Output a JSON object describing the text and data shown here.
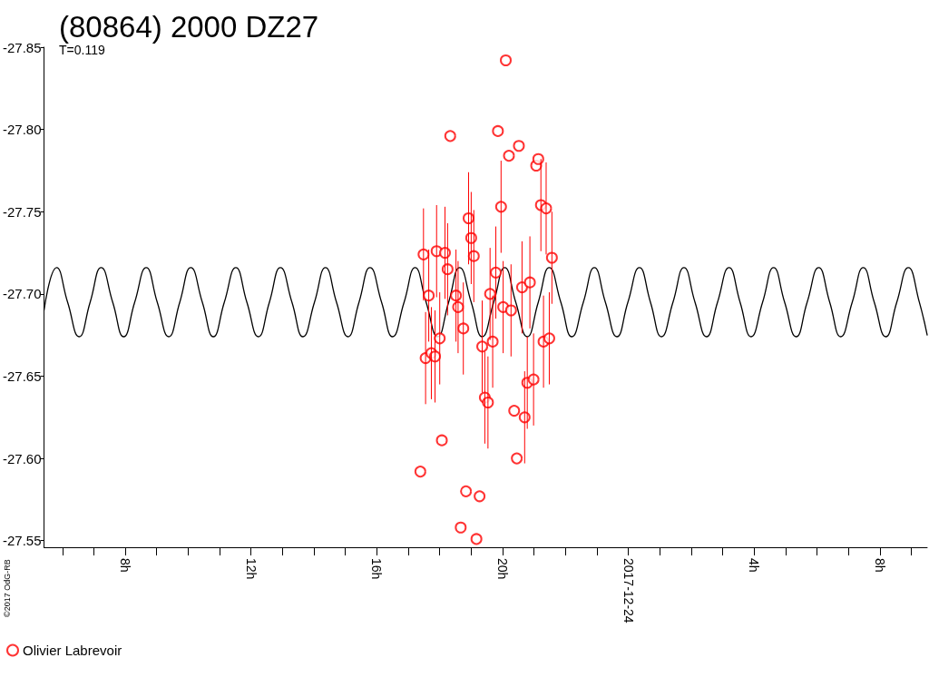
{
  "chart_data": {
    "type": "scatter",
    "title": "(80864) 2000 DZ27",
    "subtitle": "T=0.119",
    "annotations": [
      "©2017 OdG-RB"
    ],
    "xlim": [
      "2017-12-23T05:25",
      "2017-12-24T09:30"
    ],
    "xticks": [
      {
        "value": "2017-12-23T06:00",
        "label": null
      },
      {
        "value": "2017-12-23T07:00",
        "label": null
      },
      {
        "value": "2017-12-23T08:00",
        "label": "8h"
      },
      {
        "value": "2017-12-23T09:00",
        "label": null
      },
      {
        "value": "2017-12-23T10:00",
        "label": null
      },
      {
        "value": "2017-12-23T11:00",
        "label": null
      },
      {
        "value": "2017-12-23T12:00",
        "label": "12h"
      },
      {
        "value": "2017-12-23T13:00",
        "label": null
      },
      {
        "value": "2017-12-23T14:00",
        "label": null
      },
      {
        "value": "2017-12-23T15:00",
        "label": null
      },
      {
        "value": "2017-12-23T16:00",
        "label": "16h"
      },
      {
        "value": "2017-12-23T17:00",
        "label": null
      },
      {
        "value": "2017-12-23T18:00",
        "label": null
      },
      {
        "value": "2017-12-23T19:00",
        "label": null
      },
      {
        "value": "2017-12-23T20:00",
        "label": "20h"
      },
      {
        "value": "2017-12-23T21:00",
        "label": null
      },
      {
        "value": "2017-12-23T22:00",
        "label": null
      },
      {
        "value": "2017-12-23T23:00",
        "label": null
      },
      "2017-12-24",
      {
        "value": "2017-12-24T01:00",
        "label": null
      },
      {
        "value": "2017-12-24T02:00",
        "label": null
      },
      {
        "value": "2017-12-24T03:00",
        "label": null
      },
      {
        "value": "2017-12-24T04:00",
        "label": "4h"
      },
      {
        "value": "2017-12-24T05:00",
        "label": null
      },
      {
        "value": "2017-12-24T06:00",
        "label": null
      },
      {
        "value": "2017-12-24T07:00",
        "label": null
      },
      {
        "value": "2017-12-24T08:00",
        "label": "8h"
      },
      {
        "value": "2017-12-24T09:00",
        "label": null
      }
    ],
    "ylim": [
      -27.546,
      -27.85
    ],
    "yticks": [
      -27.85,
      {
        "value": -27.8,
        "label": "-27.80"
      },
      -27.75,
      {
        "value": -27.7,
        "label": "-27.70"
      },
      -27.65,
      {
        "value": -27.6,
        "label": "-27.60"
      },
      -27.55
    ],
    "grid": false,
    "legend": "bottom left",
    "marker": "circle",
    "series": [
      {
        "name": "Olivier Labrevoir",
        "color": "#ff0000",
        "x": [
          "2017-12-23T17:23",
          "2017-12-23T17:29",
          "2017-12-23T17:33",
          "2017-12-23T17:39",
          "2017-12-23T17:44",
          "2017-12-23T17:51",
          "2017-12-23T17:54",
          "2017-12-23T18:00",
          "2017-12-23T18:04",
          "2017-12-23T18:10",
          "2017-12-23T18:15",
          "2017-12-23T18:20",
          "2017-12-23T18:31",
          "2017-12-23T18:35",
          "2017-12-23T18:40",
          "2017-12-23T18:45",
          "2017-12-23T18:50",
          "2017-12-23T18:55",
          "2017-12-23T19:00",
          "2017-12-23T19:05",
          "2017-12-23T19:10",
          "2017-12-23T19:16",
          "2017-12-23T19:21",
          "2017-12-23T19:26",
          "2017-12-23T19:32",
          "2017-12-23T19:36",
          "2017-12-23T19:41",
          "2017-12-23T19:47",
          "2017-12-23T19:51",
          "2017-12-23T19:57",
          "2017-12-23T20:01",
          "2017-12-23T20:06",
          "2017-12-23T20:12",
          "2017-12-23T20:16",
          "2017-12-23T20:22",
          "2017-12-23T20:27",
          "2017-12-23T20:31",
          "2017-12-23T20:37",
          "2017-12-23T20:42",
          "2017-12-23T20:47",
          "2017-12-23T20:52",
          "2017-12-23T20:59",
          "2017-12-23T21:04",
          "2017-12-23T21:08",
          "2017-12-23T21:13",
          "2017-12-23T21:18",
          "2017-12-23T21:23",
          "2017-12-23T21:29",
          "2017-12-23T21:34"
        ],
        "values": [
          -27.592,
          -27.724,
          -27.661,
          -27.699,
          -27.664,
          -27.662,
          -27.726,
          -27.673,
          -27.611,
          -27.725,
          -27.715,
          -27.796,
          -27.699,
          -27.692,
          -27.558,
          -27.679,
          -27.58,
          -27.746,
          -27.734,
          -27.723,
          -27.551,
          -27.577,
          -27.668,
          -27.637,
          -27.634,
          -27.7,
          -27.671,
          -27.713,
          -27.799,
          -27.753,
          -27.692,
          -27.842,
          -27.784,
          -27.69,
          -27.629,
          -27.6,
          -27.79,
          -27.704,
          -27.625,
          -27.646,
          -27.707,
          -27.648,
          -27.778,
          -27.782,
          -27.754,
          -27.671,
          -27.752,
          -27.673,
          -27.722
        ],
        "errors": [
          null,
          0.028,
          0.028,
          0.028,
          0.028,
          0.028,
          0.028,
          0.028,
          null,
          0.028,
          0.028,
          null,
          0.028,
          0.028,
          null,
          0.028,
          null,
          0.028,
          0.028,
          0.028,
          null,
          null,
          0.028,
          0.028,
          0.028,
          0.028,
          0.028,
          0.028,
          null,
          0.028,
          0.028,
          null,
          null,
          0.028,
          null,
          null,
          null,
          0.028,
          0.028,
          0.028,
          0.028,
          0.028,
          null,
          null,
          0.028,
          0.028,
          0.028,
          0.028,
          0.028
        ]
      },
      {
        "type": "line",
        "color": "#000000",
        "marker": "none",
        "x": [
          "2017-12-23T05:25",
          "2017-12-23T05:49",
          "2017-12-23T06:10",
          "2017-12-23T06:32",
          "2017-12-23T06:53",
          "2017-12-23T07:14",
          "2017-12-23T07:36",
          "2017-12-23T07:57",
          "2017-12-23T08:18",
          "2017-12-23T08:40",
          "2017-12-23T09:01",
          "2017-12-23T09:23",
          "2017-12-23T09:44",
          "2017-12-23T10:05",
          "2017-12-23T10:27",
          "2017-12-23T10:48",
          "2017-12-23T11:09",
          "2017-12-23T11:31",
          "2017-12-23T11:52",
          "2017-12-23T12:14",
          "2017-12-23T12:35",
          "2017-12-23T12:56",
          "2017-12-23T13:18",
          "2017-12-23T13:39",
          "2017-12-23T14:01",
          "2017-12-23T14:22",
          "2017-12-23T14:43",
          "2017-12-23T15:05",
          "2017-12-23T15:26",
          "2017-12-23T15:47",
          "2017-12-23T16:09",
          "2017-12-23T16:30",
          "2017-12-23T16:52",
          "2017-12-23T17:13",
          "2017-12-23T17:34",
          "2017-12-23T17:56",
          "2017-12-23T18:17",
          "2017-12-23T18:38",
          "2017-12-23T19:00",
          "2017-12-23T19:21",
          "2017-12-23T19:43",
          "2017-12-23T20:04",
          "2017-12-23T20:25",
          "2017-12-23T20:47",
          "2017-12-23T21:08",
          "2017-12-23T21:29",
          "2017-12-23T21:51",
          "2017-12-23T22:12",
          "2017-12-23T22:34",
          "2017-12-23T22:55",
          "2017-12-23T23:16",
          "2017-12-23T23:38",
          "2017-12-23T23:59",
          "2017-12-24T00:21",
          "2017-12-24T00:42",
          "2017-12-24T01:03",
          "2017-12-24T01:25",
          "2017-12-24T01:46",
          "2017-12-24T02:07",
          "2017-12-24T02:29",
          "2017-12-24T02:50",
          "2017-12-24T03:12",
          "2017-12-24T03:33",
          "2017-12-24T03:54",
          "2017-12-24T04:16",
          "2017-12-24T04:37",
          "2017-12-24T04:58",
          "2017-12-24T05:20",
          "2017-12-24T05:41",
          "2017-12-24T06:03",
          "2017-12-24T06:24",
          "2017-12-24T06:45",
          "2017-12-24T07:07",
          "2017-12-24T07:28",
          "2017-12-24T07:49",
          "2017-12-24T08:11",
          "2017-12-24T08:32",
          "2017-12-24T08:54",
          "2017-12-24T09:15",
          "2017-12-24T09:30"
        ],
        "values": [
          -27.69,
          -27.716,
          -27.695,
          -27.674,
          -27.695,
          -27.716,
          -27.695,
          -27.674,
          -27.695,
          -27.716,
          -27.695,
          -27.674,
          -27.695,
          -27.716,
          -27.695,
          -27.674,
          -27.695,
          -27.716,
          -27.695,
          -27.674,
          -27.695,
          -27.716,
          -27.695,
          -27.674,
          -27.695,
          -27.716,
          -27.695,
          -27.674,
          -27.695,
          -27.716,
          -27.695,
          -27.674,
          -27.695,
          -27.716,
          -27.695,
          -27.674,
          -27.695,
          -27.716,
          -27.695,
          -27.674,
          -27.695,
          -27.716,
          -27.695,
          -27.674,
          -27.695,
          -27.716,
          -27.695,
          -27.674,
          -27.695,
          -27.716,
          -27.695,
          -27.674,
          -27.695,
          -27.716,
          -27.695,
          -27.674,
          -27.695,
          -27.716,
          -27.695,
          -27.674,
          -27.695,
          -27.716,
          -27.695,
          -27.674,
          -27.695,
          -27.716,
          -27.695,
          -27.674,
          -27.695,
          -27.716,
          -27.695,
          -27.674,
          -27.695,
          -27.716,
          -27.695,
          -27.674,
          -27.695,
          -27.716,
          -27.695,
          -27.675
        ]
      }
    ]
  }
}
